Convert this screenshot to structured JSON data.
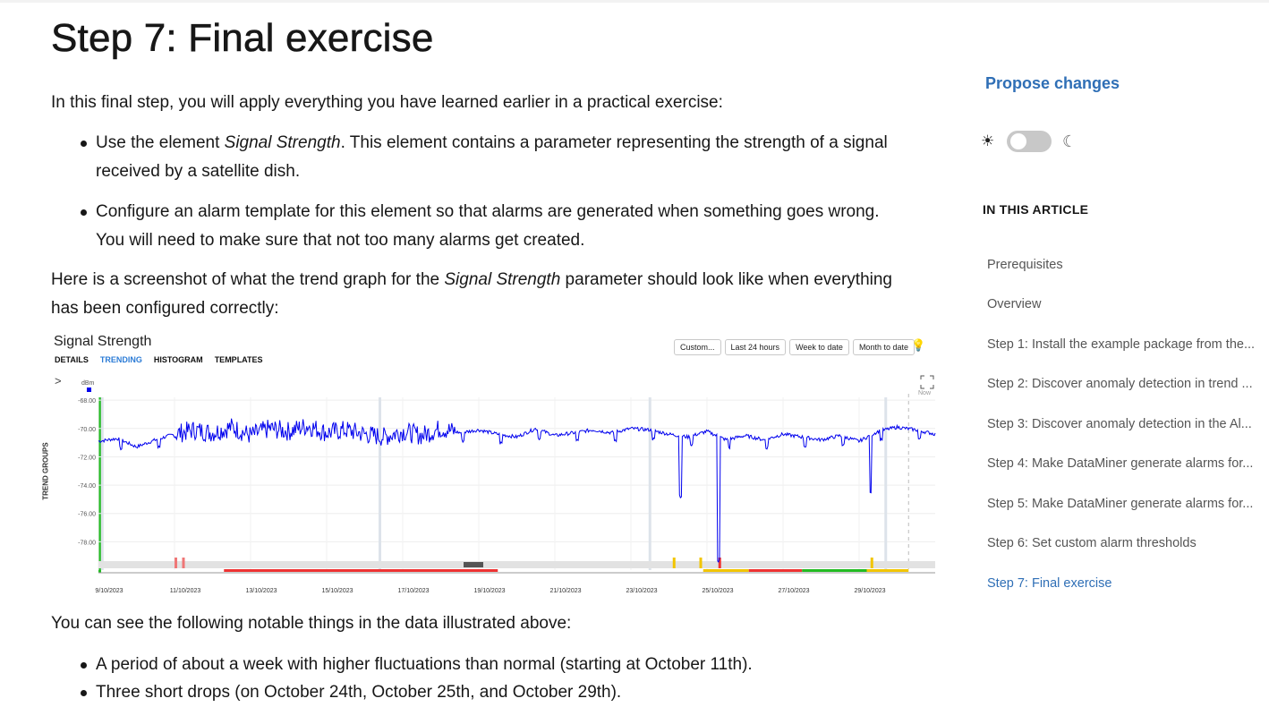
{
  "page": {
    "title": "Step 7: Final exercise",
    "intro": "In this final step, you will apply everything you have learned earlier in a practical exercise:",
    "bullet1_pre": "Use the element ",
    "bullet1_em": "Signal Strength",
    "bullet1_post": ". This element contains a parameter representing the strength of a signal",
    "bullet1_line2": "received by a satellite dish.",
    "bullet2_line1": "Configure an alarm template for this element so that alarms are generated when something goes wrong.",
    "bullet2_line2": "You will need to make sure that not too many alarms get created.",
    "para2_pre": "Here is a screenshot of what the trend graph for the ",
    "para2_em": "Signal Strength",
    "para2_post": " parameter should look like when everything",
    "para2_line2": "has been configured correctly:",
    "para3": "You can see the following notable things in the data illustrated above:",
    "bullet3": "A period of about a week with higher fluctuations than normal (starting at October 11th).",
    "bullet4": "Three short drops (on October 24th, October 25th, and October 29th)."
  },
  "chart_ui": {
    "title": "Signal Strength",
    "tabs": [
      "DETAILS",
      "TRENDING",
      "HISTOGRAM",
      "TEMPLATES"
    ],
    "active_tab": "TRENDING",
    "buttons": [
      "Custom...",
      "Last 24 hours",
      "Week to date",
      "Month to date"
    ],
    "trend_groups": "TREND GROUPS",
    "unit": "dBm",
    "now_label": "Now"
  },
  "chart_data": {
    "type": "line",
    "title": "Signal Strength",
    "ylabel": "dBm",
    "ylim": [
      -80,
      -67.8
    ],
    "y_ticks": [
      "-68.00",
      "-70.00",
      "-72.00",
      "-74.00",
      "-76.00",
      "-78.00"
    ],
    "x_ticks": [
      "9/10/2023",
      "11/10/2023",
      "13/10/2023",
      "15/10/2023",
      "17/10/2023",
      "19/10/2023",
      "21/10/2023",
      "23/10/2023",
      "25/10/2023",
      "27/10/2023",
      "29/10/2023"
    ],
    "series_color": "#0000ee",
    "series": [
      {
        "x_days": [
          9.0,
          9.5,
          10.0,
          10.5,
          11.0,
          11.5,
          12.0,
          12.5,
          13.0,
          13.5,
          14.0,
          14.5,
          15.0,
          15.5,
          16.0,
          16.5,
          17.0,
          17.5,
          18.0,
          18.5,
          19.0,
          19.5,
          20.0,
          20.5,
          21.0,
          21.5,
          22.0,
          22.5,
          23.0,
          23.5,
          24.0,
          24.5,
          25.0,
          25.5,
          26.0,
          26.5,
          27.0,
          27.5,
          28.0,
          28.5,
          29.0,
          29.5,
          30.0,
          30.5,
          31.0
        ],
        "values": [
          -70.9,
          -70.7,
          -71.3,
          -70.8,
          -70.4,
          -70.1,
          -70.3,
          -69.9,
          -70.5,
          -70.0,
          -70.2,
          -69.8,
          -70.3,
          -70.1,
          -70.4,
          -70.6,
          -70.2,
          -70.5,
          -70.0,
          -70.3,
          -70.1,
          -70.4,
          -70.6,
          -70.0,
          -70.5,
          -70.3,
          -70.1,
          -70.3,
          -70.0,
          -70.1,
          -70.4,
          -70.6,
          -70.2,
          -70.8,
          -70.5,
          -70.8,
          -70.4,
          -70.6,
          -70.8,
          -70.5,
          -70.9,
          -70.2,
          -69.9,
          -70.1,
          -70.4
        ]
      }
    ],
    "fluctuation_period": [
      "11/10/2023",
      "18/10/2023"
    ],
    "drops": [
      {
        "date": "24/10/2023",
        "min": -75.0
      },
      {
        "date": "25/10/2023",
        "min": -79.5
      },
      {
        "date": "29/10/2023",
        "min": -75.0
      }
    ],
    "grid": true
  },
  "sidebar": {
    "propose": "Propose changes",
    "sun_icon": "☀",
    "moon_icon": "☾",
    "toc_heading": "IN THIS ARTICLE",
    "toc": [
      "Prerequisites",
      "Overview",
      "Step 1: Install the example package from the...",
      "Step 2: Discover anomaly detection in trend ...",
      "Step 3: Discover anomaly detection in the Al...",
      "Step 4: Make DataMiner generate alarms for...",
      "Step 5: Make DataMiner generate alarms for...",
      "Step 6: Set custom alarm thresholds",
      "Step 7: Final exercise"
    ],
    "toc_active_index": 8,
    "link_color": "#2f6fb6"
  }
}
